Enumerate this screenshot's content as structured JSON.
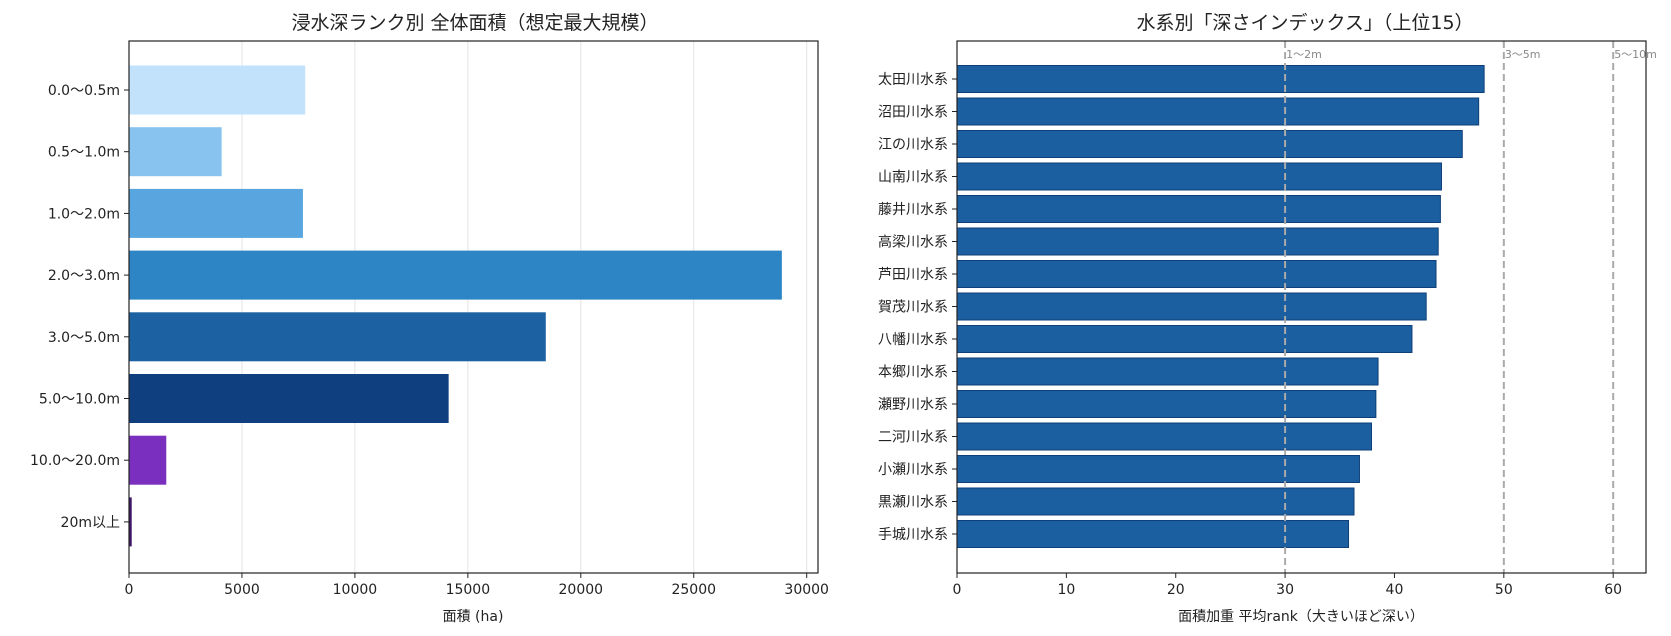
{
  "chart_data": [
    {
      "type": "bar",
      "orientation": "horizontal",
      "title": "浸水深ランク別 全体面積（想定最大規模）",
      "xlabel": "面積 (ha)",
      "ylabel": "",
      "categories": [
        "0.0〜0.5m",
        "0.5〜1.0m",
        "1.0〜2.0m",
        "2.0〜3.0m",
        "3.0〜5.0m",
        "5.0〜10.0m",
        "10.0〜20.0m",
        "20m以上"
      ],
      "values": [
        7800,
        4100,
        7700,
        28900,
        18450,
        14150,
        1650,
        120
      ],
      "colors": [
        "#c2e2fb",
        "#88c3ef",
        "#59a5df",
        "#2d85c6",
        "#1c62a3",
        "#0f3f7e",
        "#7b2fbe",
        "#3e1568"
      ],
      "xlim": [
        0,
        30500
      ],
      "xticks": [
        0,
        5000,
        10000,
        15000,
        20000,
        25000,
        30000
      ],
      "grid": "x"
    },
    {
      "type": "bar",
      "orientation": "horizontal",
      "title": "水系別「深さインデックス」（上位15）",
      "xlabel": "面積加重 平均rank（大きいほど深い）",
      "ylabel": "",
      "categories": [
        "太田川水系",
        "沼田川水系",
        "江の川水系",
        "山南川水系",
        "藤井川水系",
        "高梁川水系",
        "芦田川水系",
        "賀茂川水系",
        "八幡川水系",
        "本郷川水系",
        "瀬野川水系",
        "二河川水系",
        "小瀬川水系",
        "黒瀬川水系",
        "手城川水系"
      ],
      "values": [
        48.2,
        47.7,
        46.2,
        44.3,
        44.2,
        44.0,
        43.8,
        42.9,
        41.6,
        38.5,
        38.3,
        37.9,
        36.8,
        36.3,
        35.8
      ],
      "bar_color": "#1c5fa0",
      "xlim": [
        0,
        63
      ],
      "xticks": [
        0,
        10,
        20,
        30,
        40,
        50,
        60
      ],
      "grid": "none",
      "reference_lines": [
        {
          "x": 30,
          "label": "1〜2m"
        },
        {
          "x": 50,
          "label": "3〜5m"
        },
        {
          "x": 60,
          "label": "5〜10m"
        }
      ]
    }
  ]
}
